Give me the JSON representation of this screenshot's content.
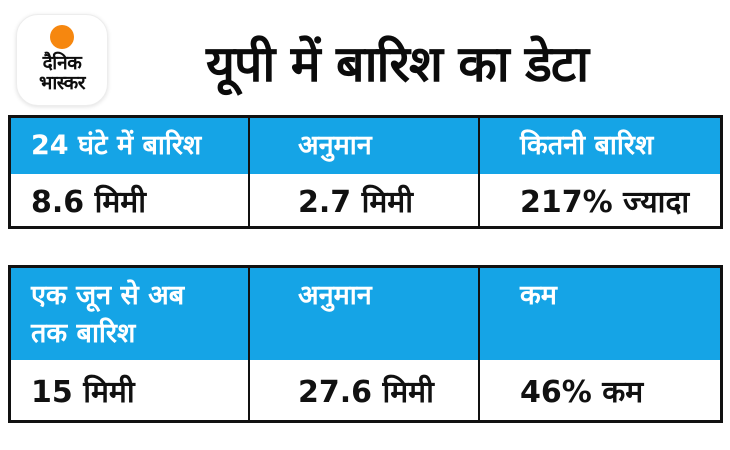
{
  "brand": {
    "name_line1": "दैनिक",
    "name_line2": "भास्कर",
    "sun_icon_color": "#F6870F"
  },
  "title": "यूपी में बारिश का डेटा",
  "colors": {
    "table_header_bg": "#15A4E6",
    "table_header_text": "#FFFFFF",
    "table_border": "#111111",
    "body_text": "#111111",
    "background": "#FFFFFF"
  },
  "chart_data": [
    {
      "type": "table",
      "title": "यूपी में बारिश का डेटा",
      "columns": [
        "24 घंटे में बारिश",
        "अनुमान",
        "कितनी बारिश"
      ],
      "rows": [
        [
          "8.6 मिमी",
          "2.7 मिमी",
          "217% ज्यादा"
        ]
      ]
    },
    {
      "type": "table",
      "columns": [
        "एक जून से अब तक बारिश",
        "अनुमान",
        "कम"
      ],
      "rows": [
        [
          "15 मिमी",
          "27.6 मिमी",
          "46% कम"
        ]
      ]
    }
  ],
  "display": {
    "table2_col1_header": "एक जून से अब\nतक बारिश"
  }
}
